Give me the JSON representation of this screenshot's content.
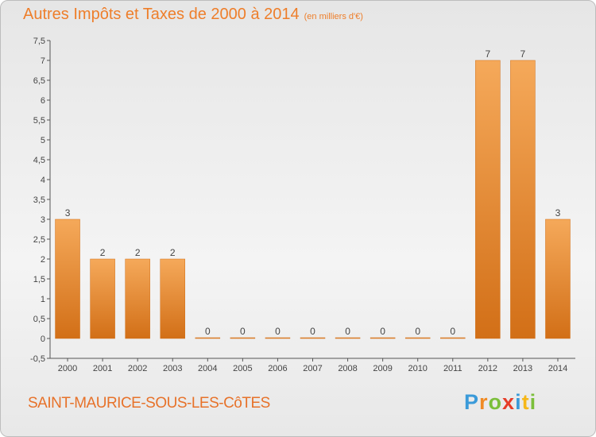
{
  "title": "Autres Impôts et Taxes de 2000 à 2014",
  "unit_note": "(en milliers d'€)",
  "city": "SAINT-MAURICE-SOUS-LES-CôTES",
  "logo": {
    "letters": [
      "P",
      "r",
      "o",
      "x",
      "i",
      "t",
      "i"
    ],
    "colors": [
      "#3a9ad9",
      "#f08a24",
      "#7bbf3a",
      "#e63c28",
      "#3a9ad9",
      "#f6b719",
      "#7bbf3a"
    ]
  },
  "colors": {
    "bar_light": "#f5a95a",
    "bar_dark": "#d26f17",
    "text": "#ee7e2a"
  },
  "chart_data": {
    "type": "bar",
    "categories": [
      "2000",
      "2001",
      "2002",
      "2003",
      "2004",
      "2005",
      "2006",
      "2007",
      "2008",
      "2009",
      "2010",
      "2011",
      "2012",
      "2013",
      "2014"
    ],
    "values": [
      3,
      2,
      2,
      2,
      0,
      0,
      0,
      0,
      0,
      0,
      0,
      0,
      7,
      7,
      3
    ],
    "value_labels": [
      "3",
      "2",
      "2",
      "2",
      "0",
      "0",
      "0",
      "0",
      "0",
      "0",
      "0",
      "0",
      "7",
      "7",
      "3"
    ],
    "y_ticks": [
      "-0,5",
      "0",
      "0,5",
      "1",
      "1,5",
      "2",
      "2,5",
      "3",
      "3,5",
      "4",
      "4,5",
      "5",
      "5,5",
      "6",
      "6,5",
      "7",
      "7,5"
    ],
    "ylim": [
      -0.5,
      7.5
    ],
    "grid": false,
    "legend": "none"
  }
}
